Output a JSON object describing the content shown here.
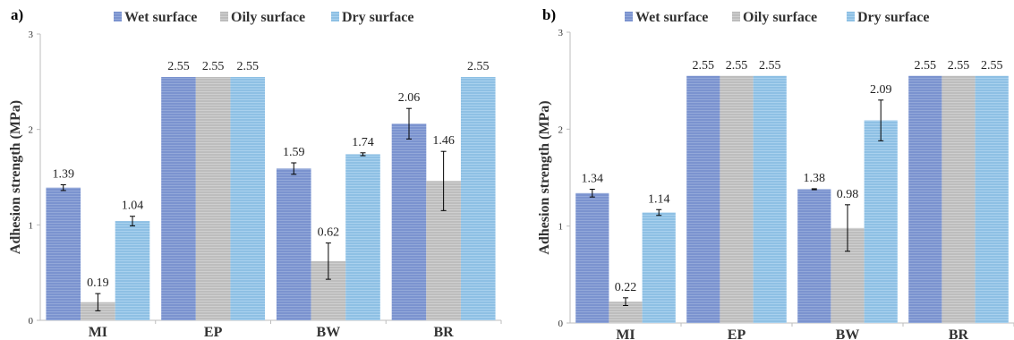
{
  "chart_data": [
    {
      "panel": "a)",
      "type": "bar",
      "categories": [
        "MI",
        "EP",
        "BW",
        "BR"
      ],
      "ylabel": "Adhesion strength (MPa)",
      "ylim": [
        0,
        3
      ],
      "yticks": [
        "0",
        "1",
        "2",
        "3"
      ],
      "grid": false,
      "legend_position": "top",
      "series": [
        {
          "name": "Wet surface",
          "color": "#7b93cf",
          "values": [
            1.39,
            2.55,
            1.59,
            2.06
          ],
          "labels": [
            "1.39",
            "2.55",
            "1.59",
            "2.06"
          ],
          "errors": [
            0.03,
            0,
            0.06,
            0.16
          ]
        },
        {
          "name": "Oily surface",
          "color": "#bdbdbd",
          "values": [
            0.19,
            2.55,
            0.62,
            1.46
          ],
          "labels": [
            "0.19",
            "2.55",
            "0.62",
            "1.46"
          ],
          "errors": [
            0.09,
            0,
            0.19,
            0.31
          ]
        },
        {
          "name": "Dry surface",
          "color": "#8ec0e4",
          "values": [
            1.04,
            2.55,
            1.74,
            2.55
          ],
          "labels": [
            "1.04",
            "2.55",
            "1.74",
            "2.55"
          ],
          "errors": [
            0.05,
            0,
            0.015,
            0
          ]
        }
      ]
    },
    {
      "panel": "b)",
      "type": "bar",
      "categories": [
        "MI",
        "EP",
        "BW",
        "BR"
      ],
      "ylabel": "Adhesion strength (MPa)",
      "ylim": [
        0,
        3
      ],
      "yticks": [
        "0",
        "1",
        "2",
        "3"
      ],
      "grid": false,
      "legend_position": "top",
      "series": [
        {
          "name": "Wet surface",
          "color": "#7b93cf",
          "values": [
            1.34,
            2.55,
            1.38,
            2.55
          ],
          "labels": [
            "1.34",
            "2.55",
            "1.38",
            "2.55"
          ],
          "errors": [
            0.04,
            0,
            0.005,
            0
          ]
        },
        {
          "name": "Oily surface",
          "color": "#bdbdbd",
          "values": [
            0.22,
            2.55,
            0.98,
            2.55
          ],
          "labels": [
            "0.22",
            "2.55",
            "0.98",
            "2.55"
          ],
          "errors": [
            0.04,
            0,
            0.24,
            0
          ]
        },
        {
          "name": "Dry surface",
          "color": "#8ec0e4",
          "values": [
            1.14,
            2.55,
            2.09,
            2.55
          ],
          "labels": [
            "1.14",
            "2.55",
            "2.09",
            "2.55"
          ],
          "errors": [
            0.03,
            0,
            0.21,
            0
          ]
        }
      ]
    }
  ]
}
